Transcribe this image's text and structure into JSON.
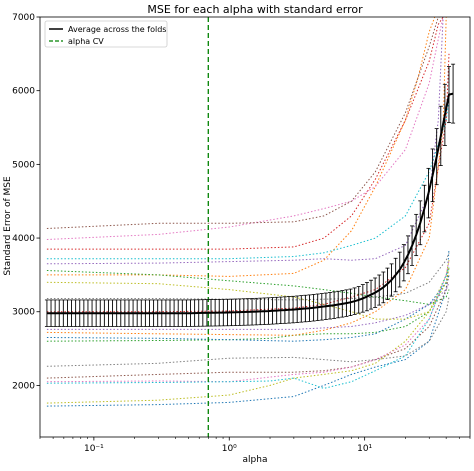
{
  "chart_data": {
    "type": "line",
    "title": "MSE for each alpha with standard error",
    "xlabel": "alpha",
    "ylabel": "Standard Error of MSE",
    "x_scale": "log",
    "xlim": [
      0.04,
      60
    ],
    "ylim": [
      1300,
      7000
    ],
    "x_ticks": [
      {
        "value": 0.1,
        "label": "10⁻¹"
      },
      {
        "value": 1,
        "label": "10⁰"
      },
      {
        "value": 10,
        "label": "10¹"
      }
    ],
    "y_ticks": [
      2000,
      3000,
      4000,
      5000,
      6000,
      7000
    ],
    "grid": false,
    "legend": {
      "position": "top-left",
      "entries": [
        {
          "label": "Average across the folds",
          "color": "#000000",
          "style": "solid"
        },
        {
          "label": "alpha CV",
          "color": "#008000",
          "style": "dashed"
        }
      ]
    },
    "alpha_cv": 0.7,
    "mean": {
      "name": "Average across the folds",
      "color": "#000000",
      "x": [
        0.045,
        0.06,
        0.08,
        0.1,
        0.15,
        0.2,
        0.3,
        0.5,
        0.7,
        1,
        1.5,
        2,
        3,
        4,
        5,
        6,
        7,
        8,
        9,
        10,
        12,
        14,
        16,
        18,
        20,
        22,
        24,
        26,
        28,
        30,
        32,
        34,
        36,
        38,
        40,
        42,
        45
      ],
      "y": [
        2980,
        2980,
        2980,
        2980,
        2980,
        2980,
        2980,
        2980,
        2985,
        2990,
        3000,
        3010,
        3030,
        3050,
        3070,
        3090,
        3110,
        3130,
        3160,
        3190,
        3260,
        3340,
        3440,
        3560,
        3700,
        3860,
        4040,
        4230,
        4440,
        4650,
        4880,
        5100,
        5330,
        5550,
        5760,
        5950,
        5960
      ],
      "err": [
        180,
        180,
        180,
        180,
        180,
        180,
        180,
        180,
        180,
        180,
        180,
        180,
        180,
        180,
        180,
        180,
        180,
        180,
        180,
        190,
        200,
        210,
        220,
        235,
        250,
        265,
        280,
        300,
        320,
        340,
        360,
        380,
        400,
        410,
        420,
        380,
        400
      ]
    },
    "folds": [
      {
        "color": "#1f77b4",
        "x": [
          0.045,
          0.3,
          1,
          3,
          5,
          8,
          12,
          20,
          30,
          40,
          42
        ],
        "y": [
          1720,
          1740,
          1770,
          1850,
          2000,
          2150,
          2250,
          2350,
          2600,
          3300,
          3850
        ]
      },
      {
        "color": "#ff7f0e",
        "x": [
          0.045,
          0.3,
          1,
          3,
          5,
          8,
          12,
          20,
          25,
          30,
          33
        ],
        "y": [
          3500,
          3500,
          3480,
          3520,
          3700,
          4100,
          4700,
          5600,
          6200,
          6800,
          7000
        ]
      },
      {
        "color": "#2ca02c",
        "x": [
          0.045,
          0.3,
          1,
          2,
          3,
          5,
          8,
          12,
          20,
          30,
          40,
          42
        ],
        "y": [
          2600,
          2610,
          2620,
          2640,
          2680,
          2700,
          2700,
          2720,
          2800,
          3000,
          3400,
          3600
        ]
      },
      {
        "color": "#d62728",
        "x": [
          0.045,
          0.3,
          1,
          3,
          5,
          8,
          12,
          20,
          30,
          35,
          38
        ],
        "y": [
          3850,
          3850,
          3850,
          3880,
          4000,
          4300,
          4800,
          5600,
          6400,
          6900,
          7000
        ]
      },
      {
        "color": "#9467bd",
        "x": [
          0.045,
          0.3,
          1,
          3,
          5,
          8,
          12,
          20,
          30,
          35,
          38
        ],
        "y": [
          3650,
          3660,
          3680,
          3700,
          3720,
          3700,
          3720,
          3900,
          4600,
          5600,
          7000
        ]
      },
      {
        "color": "#8c564b",
        "x": [
          0.045,
          0.3,
          1,
          3,
          5,
          8,
          12,
          20,
          30,
          40,
          42
        ],
        "y": [
          2100,
          2150,
          2180,
          2180,
          2200,
          2250,
          2350,
          2500,
          2800,
          3300,
          3500
        ]
      },
      {
        "color": "#e377c2",
        "x": [
          0.045,
          0.3,
          1,
          3,
          5,
          8,
          12,
          20,
          30,
          35,
          38
        ],
        "y": [
          3980,
          4050,
          4150,
          4300,
          4400,
          4500,
          4700,
          5200,
          6100,
          6700,
          7000
        ]
      },
      {
        "color": "#7f7f7f",
        "x": [
          0.045,
          0.3,
          1,
          3,
          5,
          8,
          12,
          20,
          30,
          40,
          42
        ],
        "y": [
          2260,
          2300,
          2370,
          2380,
          2350,
          2320,
          2350,
          2400,
          2600,
          3000,
          3200
        ]
      },
      {
        "color": "#bcbd22",
        "x": [
          0.045,
          0.3,
          1,
          2,
          3,
          5,
          8,
          12,
          20,
          30,
          40,
          42
        ],
        "y": [
          1760,
          1800,
          1870,
          2000,
          2100,
          2150,
          2200,
          2300,
          2600,
          3000,
          3500,
          3700
        ]
      },
      {
        "color": "#17becf",
        "x": [
          0.045,
          0.3,
          1,
          3,
          5,
          8,
          12,
          20,
          30,
          40,
          42
        ],
        "y": [
          3720,
          3720,
          3720,
          3750,
          3800,
          3900,
          4000,
          4300,
          4900,
          5600,
          5900
        ]
      },
      {
        "color": "#1f77b4",
        "x": [
          0.045,
          0.3,
          1,
          3,
          5,
          8,
          12,
          20,
          30,
          40,
          42
        ],
        "y": [
          2650,
          2640,
          2620,
          2600,
          2620,
          2650,
          2700,
          2900,
          3100,
          3400,
          3500
        ]
      },
      {
        "color": "#ff7f0e",
        "x": [
          0.045,
          0.3,
          1,
          3,
          5,
          8,
          12,
          20,
          30,
          38,
          40
        ],
        "y": [
          2720,
          2700,
          2690,
          2680,
          2750,
          2850,
          3000,
          3300,
          4000,
          5500,
          7000
        ]
      },
      {
        "color": "#2ca02c",
        "x": [
          0.045,
          0.3,
          1,
          3,
          5,
          8,
          12,
          20,
          30,
          40,
          42
        ],
        "y": [
          3560,
          3500,
          3420,
          3350,
          3300,
          3250,
          3200,
          3150,
          3100,
          3200,
          3300
        ]
      },
      {
        "color": "#d62728",
        "x": [
          0.045,
          0.3,
          1,
          3,
          5,
          8,
          12,
          20,
          30,
          40,
          42
        ],
        "y": [
          3000,
          3000,
          3010,
          3050,
          3100,
          3200,
          3300,
          3600,
          4200,
          5600,
          6500
        ]
      },
      {
        "color": "#9467bd",
        "x": [
          0.045,
          0.3,
          1,
          3,
          5,
          8,
          12,
          20,
          30,
          40,
          42
        ],
        "y": [
          2760,
          2760,
          2760,
          2760,
          2780,
          2800,
          2850,
          2950,
          3100,
          3300,
          3400
        ]
      },
      {
        "color": "#8c564b",
        "x": [
          0.045,
          0.3,
          1,
          3,
          5,
          8,
          12,
          20,
          30,
          35,
          38
        ],
        "y": [
          4130,
          4200,
          4200,
          4220,
          4300,
          4500,
          4900,
          5700,
          6600,
          7000,
          7000
        ]
      },
      {
        "color": "#e377c2",
        "x": [
          0.045,
          0.3,
          1,
          3,
          5,
          8,
          12,
          20,
          30,
          40,
          42
        ],
        "y": [
          2050,
          2060,
          2050,
          2150,
          2180,
          2250,
          2350,
          2550,
          2900,
          3500,
          3700
        ]
      },
      {
        "color": "#7f7f7f",
        "x": [
          0.045,
          0.3,
          1,
          3,
          5,
          8,
          12,
          20,
          30,
          40,
          42
        ],
        "y": [
          3180,
          3180,
          3170,
          3160,
          3170,
          3180,
          3200,
          3250,
          3400,
          3700,
          3800
        ]
      },
      {
        "color": "#bcbd22",
        "x": [
          0.045,
          0.3,
          1,
          3,
          5,
          8,
          12,
          20,
          30,
          40,
          42
        ],
        "y": [
          3400,
          3380,
          3300,
          3200,
          3100,
          3000,
          2900,
          2900,
          3000,
          3400,
          3600
        ]
      },
      {
        "color": "#17becf",
        "x": [
          0.045,
          0.3,
          1,
          2,
          3,
          5,
          8,
          12,
          20,
          30,
          40,
          42
        ],
        "y": [
          2030,
          2040,
          2050,
          2060,
          2100,
          1960,
          2050,
          2200,
          2400,
          2900,
          3500,
          3600
        ]
      }
    ]
  }
}
